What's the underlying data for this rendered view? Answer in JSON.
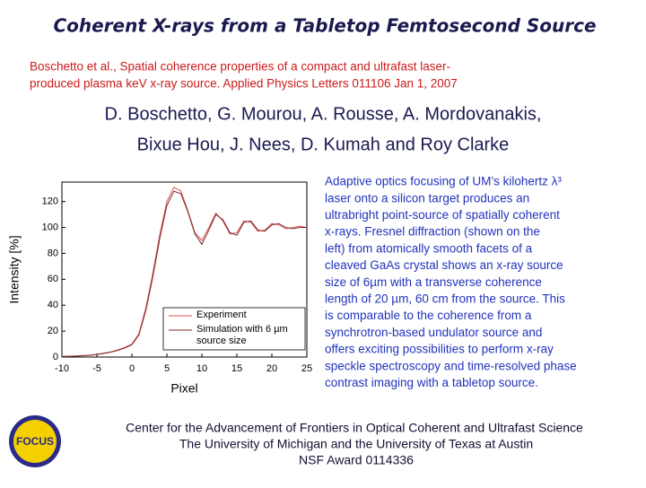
{
  "header": {
    "title": "Coherent X-rays from a Tabletop Femtosecond Source",
    "citation": [
      "Boschetto  et al., Spatial coherence properties of a compact and ultrafast laser-",
      "produced plasma keV x-ray source.  Applied Physics Letters  011106 Jan 1,  2007"
    ],
    "authors": [
      "D. Boschetto, G. Mourou, A. Rousse, A. Mordovanakis,",
      "Bixue Hou, J. Nees, D. Kumah and Roy Clarke"
    ]
  },
  "description": [
    "Adaptive optics focusing of UM’s kilohertz λ³",
    "laser onto a silicon target produces an",
    "ultrabright point-source of spatially coherent",
    "x-rays.  Fresnel diffraction (shown on the",
    "left) from atomically smooth facets of a",
    "cleaved GaAs crystal shows an x-ray source",
    "size of 6µm  with a transverse coherence",
    "length of 20 µm, 60 cm from the source. This",
    "is comparable to the coherence from a",
    "synchrotron-based undulator source and",
    "offers exciting possibilities to perform x-ray",
    "speckle spectroscopy and time-resolved phase",
    "contrast imaging with a tabletop source."
  ],
  "footer": [
    "Center for the Advancement of Frontiers in Optical Coherent and Ultrafast Science",
    "The University of Michigan and the  University of Texas at Austin",
    "NSF Award 0114336"
  ],
  "logo": "FOCUS",
  "chart_data": {
    "type": "line",
    "x_label": "Pixel",
    "y_label": "Intensity [%]",
    "x": [
      -10,
      -9,
      -8,
      -7,
      -6,
      -5,
      -4,
      -3,
      -2,
      -1,
      0,
      1,
      2,
      3,
      4,
      5,
      6,
      7,
      8,
      9,
      10,
      11,
      12,
      13,
      14,
      15,
      16,
      17,
      18,
      19,
      20,
      21,
      22,
      23,
      24,
      25
    ],
    "series": [
      {
        "name": "Experiment",
        "color": "#e05050",
        "values": [
          0.5,
          0.6,
          0.8,
          1,
          1.5,
          2,
          3,
          4,
          5.5,
          7.5,
          10,
          18,
          38,
          65,
          95,
          120,
          131,
          128,
          113,
          96,
          90,
          100,
          111,
          105,
          95,
          96,
          105,
          104,
          97,
          98,
          103,
          102,
          99,
          100,
          101,
          100
        ]
      },
      {
        "name": "Simulation with 6 µm source size",
        "color": "#7a2a2a",
        "values": [
          0.4,
          0.5,
          0.7,
          1,
          1.4,
          2,
          2.8,
          3.8,
          5.2,
          7,
          9.5,
          17,
          36,
          62,
          92,
          117,
          128,
          126,
          112,
          95,
          87,
          98,
          110,
          106,
          96,
          94,
          104,
          105,
          98,
          97,
          102,
          103,
          100,
          99,
          100,
          100
        ]
      }
    ],
    "xlim": [
      -10,
      25
    ],
    "ylim": [
      0,
      135
    ],
    "xticks": [
      -10,
      -5,
      0,
      5,
      10,
      15,
      20,
      25
    ],
    "yticks": [
      0,
      20,
      40,
      60,
      80,
      100,
      120
    ]
  }
}
